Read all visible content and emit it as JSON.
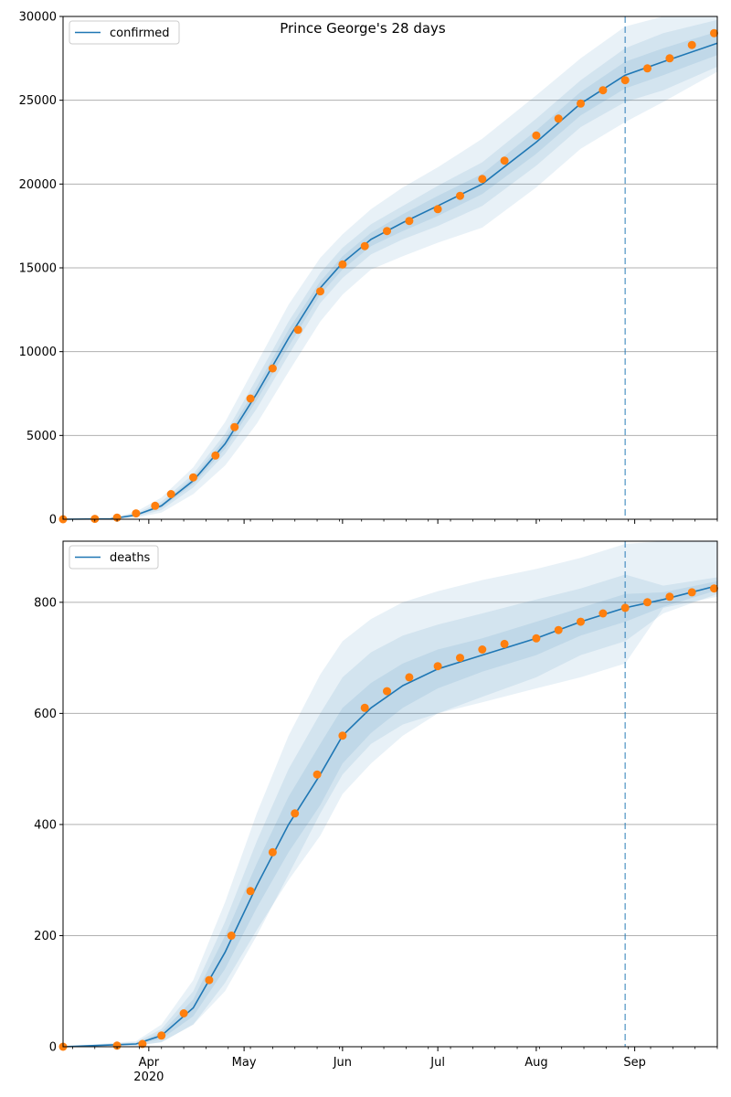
{
  "figure": {
    "title": "Prince George's 28 days",
    "x_tick_labels": [
      {
        "date": "2020-04-01",
        "label": "Apr"
      },
      {
        "date": "2020-05-01",
        "label": "May"
      },
      {
        "date": "2020-06-01",
        "label": "Jun"
      },
      {
        "date": "2020-07-01",
        "label": "Jul"
      },
      {
        "date": "2020-08-01",
        "label": "Aug"
      },
      {
        "date": "2020-09-01",
        "label": "Sep"
      }
    ],
    "x_year_label": "2020",
    "colors": {
      "model": "#1f77b4",
      "observed": "#ff7f0e",
      "band": "#1f77b4",
      "forecast_line": "#1f77b4",
      "grid": "#b0b0b0"
    }
  },
  "chart_data": [
    {
      "type": "line",
      "legend_label": "confirmed",
      "legend_location": "upper-left",
      "x_range": [
        "2020-03-05",
        "2020-09-27"
      ],
      "ylim": [
        0,
        30000
      ],
      "y_ticks": [
        0,
        5000,
        10000,
        15000,
        20000,
        25000,
        30000
      ],
      "y_tick_labels": [
        "0",
        "5000",
        "10000",
        "15000",
        "20000",
        "25000",
        "30000"
      ],
      "grid": "horizontal",
      "forecast_start": "2020-08-29",
      "model_line": {
        "x": [
          "2020-03-05",
          "2020-03-20",
          "2020-03-28",
          "2020-04-05",
          "2020-04-15",
          "2020-04-25",
          "2020-05-05",
          "2020-05-15",
          "2020-05-25",
          "2020-06-01",
          "2020-06-10",
          "2020-06-20",
          "2020-07-01",
          "2020-07-15",
          "2020-08-01",
          "2020-08-15",
          "2020-08-29",
          "2020-09-10",
          "2020-09-27"
        ],
        "y": [
          0,
          30,
          250,
          800,
          2300,
          4500,
          7500,
          10800,
          13800,
          15300,
          16700,
          17700,
          18700,
          20000,
          22500,
          24800,
          26500,
          27300,
          28400
        ]
      },
      "bands": [
        {
          "level": "outer",
          "upper": [
            0,
            60,
            450,
            1300,
            3100,
            5800,
            9300,
            12800,
            15600,
            17000,
            18500,
            19800,
            21000,
            22700,
            25300,
            27500,
            29400,
            30000,
            30000
          ],
          "lower": [
            0,
            10,
            100,
            400,
            1500,
            3200,
            5700,
            8800,
            11800,
            13400,
            14900,
            15700,
            16500,
            17400,
            19800,
            22100,
            23700,
            24900,
            26700
          ]
        },
        {
          "level": "middle",
          "upper": [
            0,
            45,
            350,
            1050,
            2700,
            5100,
            8400,
            11800,
            14700,
            16200,
            17600,
            18700,
            19900,
            21300,
            23900,
            26200,
            28100,
            29000,
            29800
          ]
        },
        {
          "level": "inner",
          "upper": [
            0,
            35,
            300,
            900,
            2500,
            4800,
            7900,
            11300,
            14200,
            15700,
            17100,
            18200,
            19300,
            20600,
            23200,
            25500,
            27300,
            28100,
            29100
          ]
        }
      ],
      "observed": {
        "x": [
          "2020-03-05",
          "2020-03-15",
          "2020-03-22",
          "2020-03-28",
          "2020-04-03",
          "2020-04-08",
          "2020-04-15",
          "2020-04-22",
          "2020-04-28",
          "2020-05-03",
          "2020-05-10",
          "2020-05-18",
          "2020-05-25",
          "2020-06-01",
          "2020-06-08",
          "2020-06-15",
          "2020-06-22",
          "2020-07-01",
          "2020-07-08",
          "2020-07-15",
          "2020-07-22",
          "2020-08-01",
          "2020-08-08",
          "2020-08-15",
          "2020-08-22",
          "2020-08-29",
          "2020-09-05",
          "2020-09-12",
          "2020-09-19",
          "2020-09-26"
        ],
        "y": [
          0,
          20,
          100,
          350,
          800,
          1500,
          2500,
          3800,
          5500,
          7200,
          9000,
          11300,
          13600,
          15200,
          16300,
          17200,
          17800,
          18500,
          19300,
          20300,
          21400,
          22900,
          23900,
          24800,
          25600,
          26200,
          26900,
          27500,
          28300,
          29000
        ]
      }
    },
    {
      "type": "line",
      "legend_label": "deaths",
      "legend_location": "upper-left",
      "x_range": [
        "2020-03-05",
        "2020-09-27"
      ],
      "ylim": [
        0,
        910
      ],
      "y_ticks": [
        0,
        200,
        400,
        600,
        800
      ],
      "y_tick_labels": [
        "0",
        "200",
        "400",
        "600",
        "800"
      ],
      "grid": "horizontal",
      "forecast_start": "2020-08-29",
      "model_line": {
        "x": [
          "2020-03-05",
          "2020-03-28",
          "2020-04-05",
          "2020-04-15",
          "2020-04-25",
          "2020-05-05",
          "2020-05-15",
          "2020-05-25",
          "2020-06-01",
          "2020-06-10",
          "2020-06-20",
          "2020-07-01",
          "2020-07-15",
          "2020-08-01",
          "2020-08-15",
          "2020-08-29",
          "2020-09-10",
          "2020-09-27"
        ],
        "y": [
          0,
          5,
          20,
          70,
          170,
          290,
          400,
          490,
          560,
          610,
          650,
          680,
          705,
          735,
          765,
          790,
          805,
          830
        ]
      },
      "bands": [
        {
          "level": "outer",
          "upper": [
            0,
            10,
            40,
            120,
            260,
            420,
            560,
            670,
            730,
            770,
            800,
            820,
            840,
            860,
            880,
            905,
            910,
            910
          ],
          "lower": [
            0,
            2,
            8,
            40,
            100,
            200,
            310,
            420,
            490,
            545,
            580,
            600,
            620,
            645,
            665,
            690,
            790,
            810
          ]
        },
        {
          "level": "middle",
          "upper": [
            0,
            8,
            32,
            100,
            225,
            370,
            500,
            600,
            665,
            710,
            740,
            760,
            780,
            805,
            825,
            850,
            830,
            845
          ]
        },
        {
          "level": "inner",
          "upper": [
            0,
            6,
            26,
            85,
            200,
            330,
            450,
            545,
            610,
            655,
            690,
            715,
            735,
            765,
            790,
            815,
            818,
            838
          ]
        }
      ],
      "observed": {
        "x": [
          "2020-03-05",
          "2020-03-22",
          "2020-03-30",
          "2020-04-05",
          "2020-04-12",
          "2020-04-20",
          "2020-04-27",
          "2020-05-03",
          "2020-05-10",
          "2020-05-17",
          "2020-05-24",
          "2020-06-01",
          "2020-06-08",
          "2020-06-15",
          "2020-06-22",
          "2020-07-01",
          "2020-07-08",
          "2020-07-15",
          "2020-07-22",
          "2020-08-01",
          "2020-08-08",
          "2020-08-15",
          "2020-08-22",
          "2020-08-29",
          "2020-09-05",
          "2020-09-12",
          "2020-09-19",
          "2020-09-26"
        ],
        "y": [
          0,
          2,
          5,
          20,
          60,
          120,
          200,
          280,
          350,
          420,
          490,
          560,
          610,
          640,
          665,
          685,
          700,
          715,
          725,
          735,
          750,
          765,
          780,
          790,
          800,
          810,
          818,
          825
        ]
      }
    }
  ]
}
